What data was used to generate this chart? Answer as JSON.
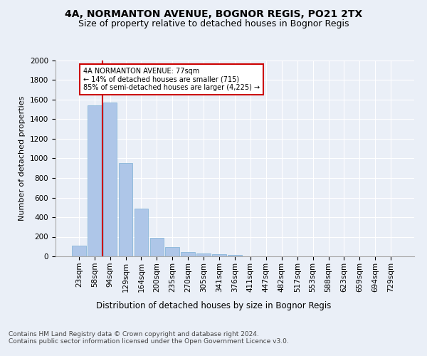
{
  "title1": "4A, NORMANTON AVENUE, BOGNOR REGIS, PO21 2TX",
  "title2": "Size of property relative to detached houses in Bognor Regis",
  "xlabel": "Distribution of detached houses by size in Bognor Regis",
  "ylabel": "Number of detached properties",
  "categories": [
    "23sqm",
    "58sqm",
    "94sqm",
    "129sqm",
    "164sqm",
    "200sqm",
    "235sqm",
    "270sqm",
    "305sqm",
    "341sqm",
    "376sqm",
    "411sqm",
    "447sqm",
    "482sqm",
    "517sqm",
    "553sqm",
    "588sqm",
    "623sqm",
    "659sqm",
    "694sqm",
    "729sqm"
  ],
  "values": [
    110,
    1540,
    1570,
    950,
    490,
    190,
    95,
    45,
    30,
    20,
    15,
    0,
    0,
    0,
    0,
    0,
    0,
    0,
    0,
    0,
    0
  ],
  "bar_color": "#aec6e8",
  "bar_edge_color": "#7bafd4",
  "vline_x": 1.5,
  "vline_color": "#cc0000",
  "annotation_text": "4A NORMANTON AVENUE: 77sqm\n← 14% of detached houses are smaller (715)\n85% of semi-detached houses are larger (4,225) →",
  "annotation_box_color": "#ffffff",
  "annotation_box_edge": "#cc0000",
  "ylim": [
    0,
    2000
  ],
  "yticks": [
    0,
    200,
    400,
    600,
    800,
    1000,
    1200,
    1400,
    1600,
    1800,
    2000
  ],
  "bg_color": "#eaeff7",
  "plot_bg_color": "#eaeff7",
  "footer": "Contains HM Land Registry data © Crown copyright and database right 2024.\nContains public sector information licensed under the Open Government Licence v3.0.",
  "title1_fontsize": 10,
  "title2_fontsize": 9,
  "xlabel_fontsize": 8.5,
  "ylabel_fontsize": 8,
  "tick_fontsize": 7.5,
  "footer_fontsize": 6.5
}
